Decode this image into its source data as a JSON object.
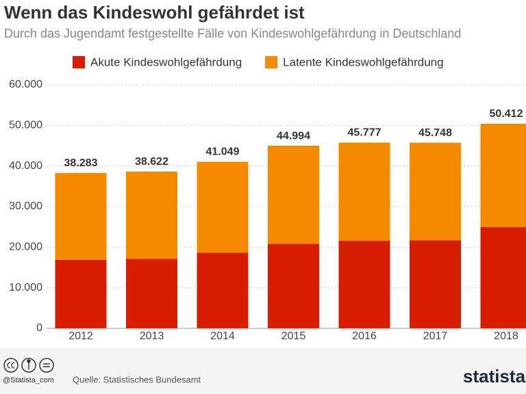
{
  "chart_data": {
    "type": "stacked_bar",
    "title": "Wenn das Kindeswohl gefährdet ist",
    "subtitle": "Durch das Jugendamt festgestellte Fälle von Kindeswohlgefährdung in Deutschland",
    "categories": [
      "2012",
      "2013",
      "2014",
      "2015",
      "2016",
      "2017",
      "2018"
    ],
    "series": [
      {
        "name": "Akute Kindeswohlgefährdung",
        "color": "#d71e00",
        "values": [
          16875,
          17158,
          18630,
          20806,
          21571,
          21694,
          24939
        ]
      },
      {
        "name": "Latente Kindeswohlgefährdung",
        "color": "#f58a00",
        "values": [
          21408,
          21464,
          22419,
          24188,
          24206,
          24054,
          25473
        ]
      }
    ],
    "totals": {
      "values": [
        38283,
        38622,
        41049,
        44994,
        45777,
        45748,
        50412
      ],
      "value_labels": [
        "38.283",
        "38.622",
        "41.049",
        "44.994",
        "45.777",
        "45.748",
        "50.412"
      ]
    },
    "ylim": [
      0,
      60000
    ],
    "yticks": [
      0,
      {
        "value": 10000,
        "label": "10.000"
      },
      {
        "value": 20000,
        "label": "20.000"
      },
      {
        "value": 30000,
        "label": "30.000"
      },
      {
        "value": 40000,
        "label": "40.000"
      },
      {
        "value": 50000,
        "label": "50.000"
      },
      {
        "value": 60000,
        "label": "60.000"
      }
    ],
    "grid": true,
    "handle": "@Statista_com",
    "source": "Quelle: Statistisches Bundesamt",
    "brand": "statista"
  }
}
